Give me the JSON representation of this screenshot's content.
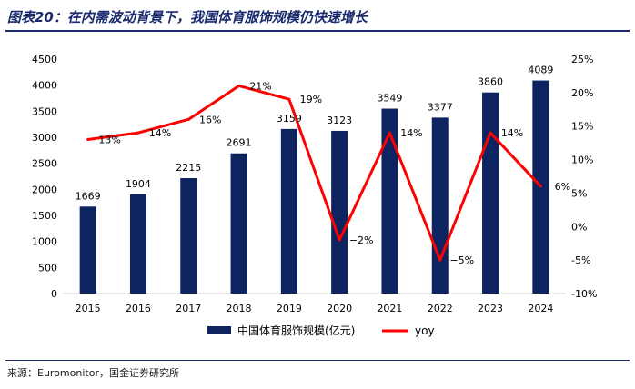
{
  "header": {
    "title": "图表20：在内需波动背景下，我国体育服饰规模仍快速增长"
  },
  "footer": {
    "source": "来源：Euromonitor，国金证券研究所"
  },
  "chart_data": {
    "type": "bar",
    "title": "图表20：在内需波动背景下，我国体育服饰规模仍快速增长",
    "categories": [
      "2015",
      "2016",
      "2017",
      "2018",
      "2019",
      "2020",
      "2021",
      "2022",
      "2023",
      "2024"
    ],
    "series": [
      {
        "name": "中国体育服饰规模(亿元)",
        "type": "bar",
        "axis": "left",
        "color": "#0d2461",
        "values": [
          1669,
          1904,
          2215,
          2691,
          3159,
          3123,
          3549,
          3377,
          3860,
          4089
        ],
        "labels": [
          "1669",
          "1904",
          "2215",
          "2691",
          "3159",
          "3123",
          "3549",
          "3377",
          "3860",
          "4089"
        ]
      },
      {
        "name": "yoy",
        "type": "line",
        "axis": "right",
        "color": "#ff0000",
        "values": [
          13,
          14,
          16,
          21,
          19,
          -2,
          14,
          -5,
          14,
          6
        ],
        "labels": [
          "13%",
          "14%",
          "16%",
          "21%",
          "19%",
          "−2%",
          "14%",
          "−5%",
          "14%",
          "6%"
        ]
      }
    ],
    "y_left": {
      "min": 0,
      "max": 4500,
      "step": 500,
      "ticks": [
        "0",
        "500",
        "1000",
        "1500",
        "2000",
        "2500",
        "3000",
        "3500",
        "4000",
        "4500"
      ]
    },
    "y_right": {
      "min": -10,
      "max": 25,
      "step": 5,
      "ticks": [
        "-10%",
        "-5%",
        "0%",
        "5%",
        "10%",
        "15%",
        "20%",
        "25%"
      ]
    },
    "legend": {
      "position": "bottom",
      "items": [
        {
          "label": "中国体育服饰规模(亿元)",
          "marker": "bar"
        },
        {
          "label": "yoy",
          "marker": "line"
        }
      ]
    },
    "grid": false
  }
}
